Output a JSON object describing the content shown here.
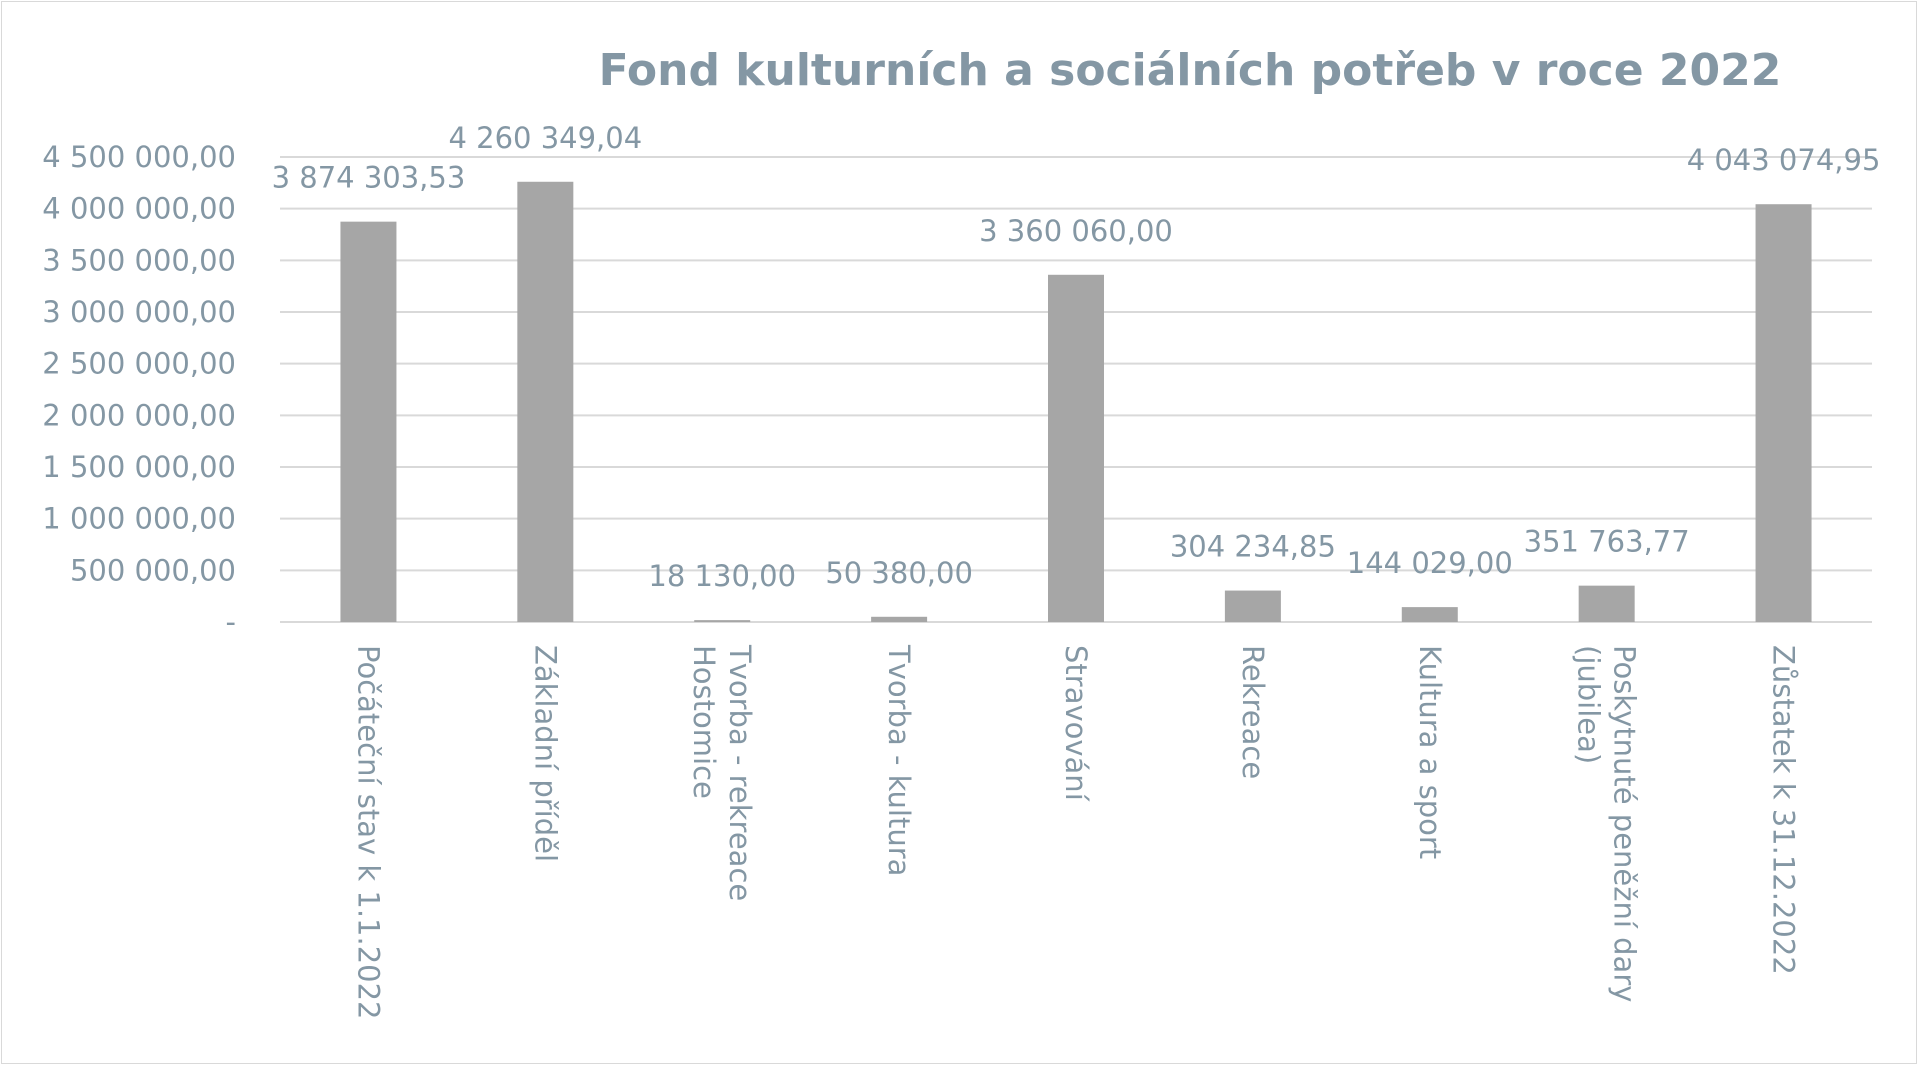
{
  "chart_data": {
    "type": "bar",
    "title": "Fond kulturních a sociálních potřeb v roce 2022",
    "xlabel": "",
    "ylabel": "",
    "ylim": [
      0,
      4500000
    ],
    "grid": true,
    "legend": "none",
    "bar_color": "#a6a6a6",
    "text_color": "#8497a4",
    "grid_color": "#d9d9d9",
    "y_ticks": [
      {
        "value": 0,
        "label": "-"
      },
      {
        "value": 500000,
        "label": "500 000,00"
      },
      {
        "value": 1000000,
        "label": "1 000 000,00"
      },
      {
        "value": 1500000,
        "label": "1 500 000,00"
      },
      {
        "value": 2000000,
        "label": "2 000 000,00"
      },
      {
        "value": 2500000,
        "label": "2 500 000,00"
      },
      {
        "value": 3000000,
        "label": "3 000 000,00"
      },
      {
        "value": 3500000,
        "label": "3 500 000,00"
      },
      {
        "value": 4000000,
        "label": "4 000 000,00"
      },
      {
        "value": 4500000,
        "label": "4 500 000,00"
      }
    ],
    "categories": [
      [
        "Počáteční stav k 1.1.2022"
      ],
      [
        "Základní příděl"
      ],
      [
        "Tvorba - rekreace",
        "Hostomice"
      ],
      [
        "Tvorba - kultura"
      ],
      [
        "Stravování"
      ],
      [
        "Rekreace"
      ],
      [
        "Kultura a sport"
      ],
      [
        "Poskytnuté peněžní dary",
        "(jubilea)"
      ],
      [
        "Zůstatek k 31.12.2022"
      ]
    ],
    "values": [
      3874303.53,
      4260349.04,
      18130.0,
      50380.0,
      3360060.0,
      304234.85,
      144029.0,
      351763.77,
      4043074.95
    ],
    "data_labels": [
      "3 874 303,53",
      "4 260 349,04",
      "18 130,00",
      "50 380,00",
      "3 360 060,00",
      "304 234,85",
      "144 029,00",
      "351 763,77",
      "4 043 074,95"
    ]
  }
}
